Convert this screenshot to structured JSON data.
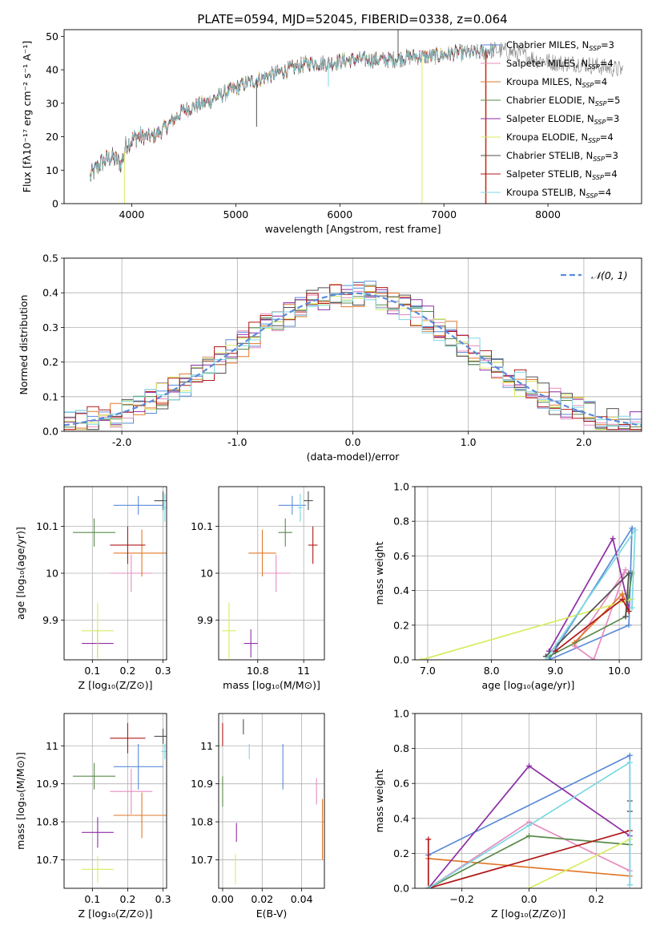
{
  "figure_title": "PLATE=0594, MJD=52045, FIBERID=0338, z=0.064",
  "colors": {
    "Chabrier MILES": "#5b8bd9",
    "Salpeter MILES": "#e88cc0",
    "Kroupa MILES": "#e0782a",
    "Chabrier ELODIE": "#5a8a4a",
    "Salpeter ELODIE": "#8e2ea5",
    "Kroupa ELODIE": "#d8ec60",
    "Chabrier STELIB": "#505050",
    "Salpeter STELIB": "#b01818",
    "Kroupa STELIB": "#7dd8e2"
  },
  "chart_data": [
    {
      "id": "spectrum",
      "type": "line",
      "title": "PLATE=0594, MJD=52045, FIBERID=0338, z=0.064",
      "xlabel": "wavelength [Angstrom, rest frame]",
      "ylabel": "Flux [fλ10⁻¹⁷ erg cm⁻² s⁻¹ A⁻¹]",
      "xlim": [
        3350,
        8900
      ],
      "ylim": [
        0,
        52
      ],
      "xticks": [
        4000,
        5000,
        6000,
        7000,
        8000
      ],
      "yticks": [
        0,
        10,
        20,
        30,
        40,
        50
      ],
      "grid": false,
      "legend": "right",
      "legend_entries": [
        {
          "model": "Chabrier MILES",
          "label": "Chabrier MILES, N",
          "sub": "SSP",
          "tail": "=3"
        },
        {
          "model": "Salpeter MILES",
          "label": "Salpeter MILES, N",
          "sub": "SSP",
          "tail": "=4"
        },
        {
          "model": "Kroupa MILES",
          "label": "Kroupa MILES, N",
          "sub": "SSP",
          "tail": "=4"
        },
        {
          "model": "Chabrier ELODIE",
          "label": "Chabrier ELODIE, N",
          "sub": "SSP",
          "tail": "=5"
        },
        {
          "model": "Salpeter ELODIE",
          "label": "Salpeter ELODIE, N",
          "sub": "SSP",
          "tail": "=3"
        },
        {
          "model": "Kroupa ELODIE",
          "label": "Kroupa ELODIE, N",
          "sub": "SSP",
          "tail": "=4"
        },
        {
          "model": "Chabrier STELIB",
          "label": "Chabrier STELIB, N",
          "sub": "SSP",
          "tail": "=3"
        },
        {
          "model": "Salpeter STELIB",
          "label": "Salpeter STELIB, N",
          "sub": "SSP",
          "tail": "=4"
        },
        {
          "model": "Kroupa STELIB",
          "label": "Kroupa STELIB, N",
          "sub": "SSP",
          "tail": "=4"
        }
      ],
      "continuum": [
        [
          3600,
          8
        ],
        [
          3700,
          12
        ],
        [
          3800,
          14
        ],
        [
          3900,
          12
        ],
        [
          3950,
          18
        ],
        [
          4050,
          20
        ],
        [
          4200,
          20
        ],
        [
          4300,
          22
        ],
        [
          4500,
          28
        ],
        [
          4700,
          30
        ],
        [
          4900,
          33
        ],
        [
          5100,
          36
        ],
        [
          5300,
          38
        ],
        [
          5500,
          40
        ],
        [
          5700,
          42
        ],
        [
          5900,
          42
        ],
        [
          6100,
          43
        ],
        [
          6300,
          43
        ],
        [
          6500,
          43
        ],
        [
          6700,
          44
        ],
        [
          6900,
          44
        ],
        [
          7100,
          45
        ],
        [
          7300,
          45
        ],
        [
          7500,
          46
        ],
        [
          7700,
          45
        ],
        [
          7900,
          43
        ],
        [
          8100,
          42
        ],
        [
          8300,
          42
        ],
        [
          8500,
          41
        ],
        [
          8700,
          40
        ]
      ],
      "data_range": [
        3600,
        8720
      ],
      "model_range": [
        3600,
        7500
      ],
      "spikes": [
        {
          "x": 3930,
          "y": 0,
          "model": "Kroupa ELODIE"
        },
        {
          "x": 5200,
          "y": 23,
          "model": "Chabrier STELIB"
        },
        {
          "x": 5890,
          "y": 35,
          "model": "Kroupa STELIB"
        },
        {
          "x": 6560,
          "y": 52,
          "model": "Chabrier STELIB"
        },
        {
          "x": 6790,
          "y": 0,
          "model": "Kroupa ELODIE"
        },
        {
          "x": 7400,
          "y": 0,
          "model": "Kroupa MILES"
        },
        {
          "x": 7405,
          "y": 0,
          "model": "Salpeter STELIB"
        }
      ]
    },
    {
      "id": "residuals",
      "type": "histogram",
      "xlabel": "(data-model)/error",
      "ylabel": "Normed distribution",
      "xlim": [
        -2.5,
        2.5
      ],
      "ylim": [
        0,
        0.5
      ],
      "xticks": [
        -2,
        -1,
        0,
        1,
        2
      ],
      "yticks": [
        0.0,
        0.1,
        0.2,
        0.3,
        0.4,
        0.5
      ],
      "grid": true,
      "legend": "top-right",
      "reference_label": "𝒩(0, 1)",
      "bin_width": 0.1,
      "reference_curve": "normal(0,1)"
    },
    {
      "id": "z-age",
      "type": "scatter",
      "xlabel": "Z [log₁₀(Z/Z⊙)]",
      "ylabel": "age  [log₁₀(age/yr)]",
      "xlim": [
        0.02,
        0.31
      ],
      "ylim": [
        9.815,
        10.185
      ],
      "xticks": [
        0.1,
        0.2,
        0.3
      ],
      "yticks": [
        9.9,
        10.0,
        10.1
      ],
      "grid": true,
      "points": [
        {
          "model": "Chabrier MILES",
          "x": 0.23,
          "xerr": 0.07,
          "y": 10.145,
          "yerr": 0.02
        },
        {
          "model": "Salpeter MILES",
          "x": 0.21,
          "xerr": 0.06,
          "y": 10.0,
          "yerr": 0.04
        },
        {
          "model": "Kroupa MILES",
          "x": 0.24,
          "xerr": 0.08,
          "y": 10.043,
          "yerr": 0.05
        },
        {
          "model": "Chabrier ELODIE",
          "x": 0.105,
          "xerr": 0.06,
          "y": 10.087,
          "yerr": 0.03
        },
        {
          "model": "Salpeter ELODIE",
          "x": 0.115,
          "xerr": 0.045,
          "y": 9.85,
          "yerr": 0.03
        },
        {
          "model": "Kroupa ELODIE",
          "x": 0.115,
          "xerr": 0.045,
          "y": 9.877,
          "yerr": 0.06
        },
        {
          "model": "Chabrier STELIB",
          "x": 0.3,
          "xerr": 0.025,
          "y": 10.155,
          "yerr": 0.02
        },
        {
          "model": "Salpeter STELIB",
          "x": 0.2,
          "xerr": 0.05,
          "y": 10.06,
          "yerr": 0.04
        },
        {
          "model": "Kroupa STELIB",
          "x": 0.305,
          "xerr": 0.01,
          "y": 10.14,
          "yerr": 0.03
        }
      ]
    },
    {
      "id": "mass-age",
      "type": "scatter",
      "xlabel": "mass [log₁₀(M/M⊙)]",
      "ylabel": "",
      "xlim": [
        10.63,
        11.09
      ],
      "ylim": [
        9.815,
        10.185
      ],
      "xticks": [
        10.8,
        11.0
      ],
      "yticks": [
        9.9,
        10.0,
        10.1
      ],
      "grid": true,
      "points": [
        {
          "model": "Chabrier MILES",
          "x": 10.95,
          "xerr": 0.06,
          "y": 10.145,
          "yerr": 0.02
        },
        {
          "model": "Salpeter MILES",
          "x": 10.88,
          "xerr": 0.06,
          "y": 10.0,
          "yerr": 0.04
        },
        {
          "model": "Kroupa MILES",
          "x": 10.82,
          "xerr": 0.06,
          "y": 10.043,
          "yerr": 0.05
        },
        {
          "model": "Chabrier ELODIE",
          "x": 10.92,
          "xerr": 0.03,
          "y": 10.087,
          "yerr": 0.03
        },
        {
          "model": "Salpeter ELODIE",
          "x": 10.77,
          "xerr": 0.03,
          "y": 9.85,
          "yerr": 0.03
        },
        {
          "model": "Kroupa ELODIE",
          "x": 10.675,
          "xerr": 0.03,
          "y": 9.877,
          "yerr": 0.06
        },
        {
          "model": "Chabrier STELIB",
          "x": 11.02,
          "xerr": 0.02,
          "y": 10.155,
          "yerr": 0.02
        },
        {
          "model": "Salpeter STELIB",
          "x": 11.04,
          "xerr": 0.02,
          "y": 10.06,
          "yerr": 0.04
        },
        {
          "model": "Kroupa STELIB",
          "x": 10.985,
          "xerr": 0.01,
          "y": 10.14,
          "yerr": 0.03
        }
      ]
    },
    {
      "id": "age-weight",
      "type": "line",
      "xlabel": "age  [log₁₀(age/yr)]",
      "ylabel": "mass weight",
      "xlim": [
        6.8,
        10.35
      ],
      "ylim": [
        0,
        1
      ],
      "xticks": [
        7,
        8,
        9,
        10
      ],
      "yticks": [
        0.0,
        0.2,
        0.4,
        0.6,
        0.8,
        1.0
      ],
      "grid": true,
      "series": [
        {
          "model": "Chabrier MILES",
          "points": [
            [
              8.9,
              0.0
            ],
            [
              10.2,
              0.76
            ],
            [
              10.15,
              0.2
            ],
            [
              8.9,
              0.0
            ]
          ]
        },
        {
          "model": "Salpeter MILES",
          "points": [
            [
              9.3,
              0.08
            ],
            [
              10.1,
              0.52
            ],
            [
              9.6,
              0.0
            ],
            [
              9.3,
              0.08
            ]
          ]
        },
        {
          "model": "Kroupa MILES",
          "points": [
            [
              9.3,
              0.1
            ],
            [
              10.05,
              0.38
            ],
            [
              10.15,
              0.3
            ]
          ]
        },
        {
          "model": "Chabrier ELODIE",
          "points": [
            [
              8.9,
              0.02
            ],
            [
              10.1,
              0.25
            ],
            [
              10.2,
              0.5
            ]
          ]
        },
        {
          "model": "Salpeter ELODIE",
          "points": [
            [
              8.9,
              0.05
            ],
            [
              9.9,
              0.7
            ],
            [
              10.15,
              0.3
            ]
          ]
        },
        {
          "model": "Kroupa ELODIE",
          "points": [
            [
              6.9,
              0.0
            ],
            [
              10.2,
              0.35
            ],
            [
              10.2,
              0.3
            ]
          ]
        },
        {
          "model": "Chabrier STELIB",
          "points": [
            [
              8.85,
              0.02
            ],
            [
              10.15,
              0.5
            ],
            [
              10.1,
              0.25
            ]
          ]
        },
        {
          "model": "Salpeter STELIB",
          "points": [
            [
              9.0,
              0.05
            ],
            [
              10.05,
              0.35
            ],
            [
              10.15,
              0.28
            ]
          ]
        },
        {
          "model": "Kroupa STELIB",
          "points": [
            [
              8.85,
              0.0
            ],
            [
              10.25,
              0.75
            ],
            [
              10.2,
              0.3
            ]
          ]
        }
      ]
    },
    {
      "id": "z-mass",
      "type": "scatter",
      "xlabel": "Z [log₁₀(Z/Z⊙)]",
      "ylabel": "mass [log₁₀(M/M⊙)]",
      "xlim": [
        0.02,
        0.31
      ],
      "ylim": [
        10.625,
        11.085
      ],
      "xticks": [
        0.1,
        0.2,
        0.3
      ],
      "yticks": [
        10.7,
        10.8,
        10.9,
        11.0
      ],
      "grid": true,
      "points": [
        {
          "model": "Chabrier MILES",
          "x": 0.23,
          "xerr": 0.07,
          "y": 10.945,
          "yerr": 0.06
        },
        {
          "model": "Salpeter MILES",
          "x": 0.21,
          "xerr": 0.06,
          "y": 10.88,
          "yerr": 0.06
        },
        {
          "model": "Kroupa MILES",
          "x": 0.24,
          "xerr": 0.08,
          "y": 10.817,
          "yerr": 0.06
        },
        {
          "model": "Chabrier ELODIE",
          "x": 0.105,
          "xerr": 0.06,
          "y": 10.92,
          "yerr": 0.035
        },
        {
          "model": "Salpeter ELODIE",
          "x": 0.115,
          "xerr": 0.045,
          "y": 10.772,
          "yerr": 0.04
        },
        {
          "model": "Kroupa ELODIE",
          "x": 0.115,
          "xerr": 0.045,
          "y": 10.675,
          "yerr": 0.035
        },
        {
          "model": "Chabrier STELIB",
          "x": 0.3,
          "xerr": 0.025,
          "y": 11.025,
          "yerr": 0.02
        },
        {
          "model": "Salpeter STELIB",
          "x": 0.2,
          "xerr": 0.05,
          "y": 11.02,
          "yerr": 0.04
        },
        {
          "model": "Kroupa STELIB",
          "x": 0.305,
          "xerr": 0.01,
          "y": 10.985,
          "yerr": 0.02
        }
      ]
    },
    {
      "id": "ebv-mass",
      "type": "scatter",
      "xlabel": "E(B-V)",
      "ylabel": "",
      "xlim": [
        -0.002,
        0.0515
      ],
      "ylim": [
        10.625,
        11.085
      ],
      "xticks": [
        0.0,
        0.02,
        0.04
      ],
      "xtick_labels": [
        "0.00",
        "0.02",
        "0.04"
      ],
      "yticks": [
        10.7,
        10.8,
        10.9,
        11.0
      ],
      "grid": true,
      "points": [
        {
          "model": "Chabrier MILES",
          "x": 0.0305,
          "xerr": 0,
          "y": 10.945,
          "yerr": 0.06
        },
        {
          "model": "Salpeter MILES",
          "x": 0.0475,
          "xerr": 0,
          "y": 10.88,
          "yerr": 0.035
        },
        {
          "model": "Kroupa MILES",
          "x": 0.0505,
          "xerr": 0,
          "y": 10.78,
          "yerr": 0.08
        },
        {
          "model": "Chabrier ELODIE",
          "x": 0.0,
          "xerr": 0,
          "y": 10.88,
          "yerr": 0.04
        },
        {
          "model": "Salpeter ELODIE",
          "x": 0.007,
          "xerr": 0,
          "y": 10.772,
          "yerr": 0.025
        },
        {
          "model": "Kroupa ELODIE",
          "x": 0.0065,
          "xerr": 0,
          "y": 10.675,
          "yerr": 0.04
        },
        {
          "model": "Chabrier STELIB",
          "x": 0.0105,
          "xerr": 0,
          "y": 11.05,
          "yerr": 0.02
        },
        {
          "model": "Salpeter STELIB",
          "x": 0.0,
          "xerr": 0,
          "y": 11.03,
          "yerr": 0.03
        },
        {
          "model": "Kroupa STELIB",
          "x": 0.0135,
          "xerr": 0,
          "y": 10.985,
          "yerr": 0.02
        }
      ]
    },
    {
      "id": "z-weight",
      "type": "line",
      "xlabel": "Z [log₁₀(Z/Z⊙)]",
      "ylabel": "mass weight",
      "xlim": [
        -0.34,
        0.335
      ],
      "ylim": [
        0,
        1
      ],
      "xticks": [
        -0.2,
        0.0,
        0.2
      ],
      "xtick_labels": [
        "−0.2",
        "0.0",
        "0.2"
      ],
      "yticks": [
        0.0,
        0.2,
        0.4,
        0.6,
        0.8,
        1.0
      ],
      "grid": true,
      "series": [
        {
          "model": "Chabrier MILES",
          "points": [
            [
              -0.3,
              0.19
            ],
            [
              0.3,
              0.76
            ],
            [
              0.3,
              0.02
            ]
          ]
        },
        {
          "model": "Salpeter MILES",
          "points": [
            [
              -0.3,
              0.0
            ],
            [
              0.0,
              0.38
            ],
            [
              0.3,
              0.1
            ]
          ]
        },
        {
          "model": "Kroupa MILES",
          "points": [
            [
              -0.3,
              0.17
            ],
            [
              0.3,
              0.07
            ]
          ]
        },
        {
          "model": "Chabrier ELODIE",
          "points": [
            [
              -0.3,
              0.0
            ],
            [
              0.0,
              0.3
            ],
            [
              0.3,
              0.25
            ]
          ]
        },
        {
          "model": "Salpeter ELODIE",
          "points": [
            [
              -0.3,
              0.0
            ],
            [
              0.0,
              0.7
            ],
            [
              0.3,
              0.3
            ]
          ]
        },
        {
          "model": "Kroupa ELODIE",
          "points": [
            [
              0.0,
              0.0
            ],
            [
              0.3,
              0.28
            ]
          ]
        },
        {
          "model": "Chabrier STELIB",
          "points": [
            [
              0.3,
              0.5
            ],
            [
              0.3,
              0.44
            ]
          ]
        },
        {
          "model": "Salpeter STELIB",
          "points": [
            [
              -0.3,
              0.28
            ],
            [
              -0.3,
              0.0
            ],
            [
              0.3,
              0.33
            ]
          ]
        },
        {
          "model": "Kroupa STELIB",
          "points": [
            [
              -0.3,
              0.0
            ],
            [
              0.0,
              0.36
            ],
            [
              0.3,
              0.72
            ],
            [
              0.3,
              0.02
            ]
          ]
        }
      ]
    }
  ]
}
